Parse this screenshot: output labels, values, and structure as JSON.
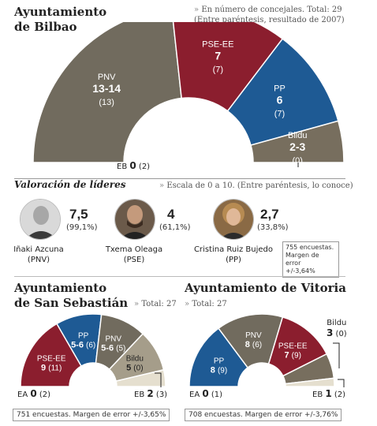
{
  "chart_data": [
    {
      "type": "pie",
      "title": "Ayuntamiento de Bilbao",
      "note": "» En número de concejales. Total: 29 (Entre paréntesis, resultado de 2007)",
      "total": 29,
      "slices": [
        {
          "name": "PNV",
          "value": "13-14",
          "seats": 13.5,
          "prev": "(13)",
          "color": "#716b5e"
        },
        {
          "name": "PSE-EE",
          "value": "7",
          "seats": 7,
          "prev": "(7)",
          "color": "#8b1e2e"
        },
        {
          "name": "PP",
          "value": "6",
          "seats": 6,
          "prev": "(7)",
          "color": "#1e5a94"
        },
        {
          "name": "Bildu",
          "value": "2-3",
          "seats": 2.5,
          "prev": "(0)",
          "color": "#776e5e"
        },
        {
          "name": "EB",
          "value": "0",
          "seats": 0,
          "prev": "(2)",
          "color": "#aaaaaa"
        }
      ]
    },
    {
      "type": "pie",
      "title": "Ayuntamiento de San Sebastián",
      "note": "» Total: 27",
      "total": 27,
      "footer": "751 encuestas. Margen de error +/-3,65%",
      "slices": [
        {
          "name": "PSE-EE",
          "value": "9",
          "seats": 9,
          "prev": "(11)",
          "color": "#8b1e2e"
        },
        {
          "name": "PP",
          "value": "5-6",
          "seats": 5.5,
          "prev": "(6)",
          "color": "#1e5a94"
        },
        {
          "name": "PNV",
          "value": "5-6",
          "seats": 5.5,
          "prev": "(5)",
          "color": "#716b5e"
        },
        {
          "name": "Bildu",
          "value": "5",
          "seats": 5,
          "prev": "(0)",
          "color": "#a59d8a"
        },
        {
          "name": "EB",
          "value": "2",
          "seats": 2,
          "prev": "(3)",
          "color": "#e5dfcf"
        },
        {
          "name": "EA",
          "value": "0",
          "seats": 0,
          "prev": "(2)",
          "color": "#cccccc"
        }
      ]
    },
    {
      "type": "pie",
      "title": "Ayuntamiento de Vitoria",
      "note": "» Total: 27",
      "total": 27,
      "footer": "708 encuestas. Margen de error +/-3,76%",
      "slices": [
        {
          "name": "PP",
          "value": "8",
          "seats": 8,
          "prev": "(9)",
          "color": "#1e5a94"
        },
        {
          "name": "PNV",
          "value": "8",
          "seats": 8,
          "prev": "(6)",
          "color": "#716b5e"
        },
        {
          "name": "PSE-EE",
          "value": "7",
          "seats": 7,
          "prev": "(9)",
          "color": "#8b1e2e"
        },
        {
          "name": "Bildu",
          "value": "3",
          "seats": 3,
          "prev": "(0)",
          "color": "#776e5e"
        },
        {
          "name": "EB",
          "value": "1",
          "seats": 1,
          "prev": "(2)",
          "color": "#e5dfcf"
        },
        {
          "name": "EA",
          "value": "0",
          "seats": 0,
          "prev": "(1)",
          "color": "#cccccc"
        }
      ]
    }
  ],
  "bilbao": {
    "title_l1": "Ayuntamiento",
    "title_l2": "de Bilbao",
    "note_l1": "En número de concejales. Total: 29",
    "note_l2": "(Entre paréntesis, resultado de 2007)",
    "arrow": "»"
  },
  "leaders": {
    "title": "Valoración de líderes",
    "note": "Escala de 0 a 10. (Entre paréntesis, lo conoce)",
    "arrow": "»",
    "items": [
      {
        "name": "Iñaki Azcuna",
        "party": "(PNV)",
        "score": "7,5",
        "known": "(99,1%)"
      },
      {
        "name": "Txema Oleaga",
        "party": "(PSE)",
        "score": "4",
        "known": "(61,1%)"
      },
      {
        "name": "Cristina Ruiz Bujedo",
        "party": "(PP)",
        "score": "2,7",
        "known": "(33,8%)"
      }
    ],
    "box_l1": "755 encuestas.",
    "box_l2": "Margen de error",
    "box_l3": "+/-3,64%"
  },
  "sansebastian": {
    "title_l1": "Ayuntamiento",
    "title_l2": "de San Sebastián",
    "note": "Total: 27",
    "arrow": "»"
  },
  "vitoria": {
    "title": "Ayuntamiento de Vitoria",
    "note": "Total: 27",
    "arrow": "»"
  }
}
